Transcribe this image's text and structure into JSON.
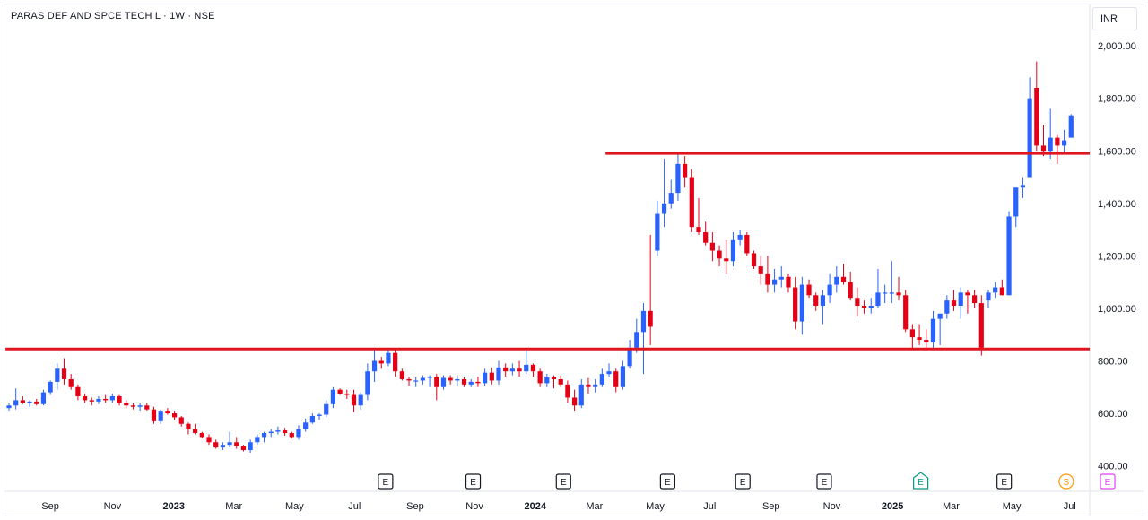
{
  "header": {
    "symbol_title": "PARAS DEF AND SPCE TECH L · 1W · NSE",
    "currency": "INR"
  },
  "colors": {
    "up": "#2962ff",
    "down": "#e60016",
    "level_line": "#e0161e",
    "grid_text": "#131722",
    "earnings": "#131722",
    "earnings_next": "#089981",
    "dividend": "#ff9800",
    "earnings_future": "#e040fb"
  },
  "chart_data": {
    "type": "candlestick",
    "timeframe": "1W",
    "yaxis": {
      "ticks": [
        "400.00",
        "600.00",
        "800.00",
        "1,000.00",
        "1,200.00",
        "1,400.00",
        "1,600.00",
        "1,800.00",
        "2,000.00"
      ],
      "tick_values": [
        400,
        600,
        800,
        1000,
        1200,
        1400,
        1600,
        1800,
        2000
      ],
      "range": [
        303,
        2161
      ]
    },
    "xaxis": {
      "labels": [
        "Sep",
        "Nov",
        "2023",
        "Mar",
        "May",
        "Jul",
        "Sep",
        "Nov",
        "2024",
        "Mar",
        "May",
        "Jul",
        "Sep",
        "Nov",
        "2025",
        "Mar",
        "May",
        "Jul"
      ],
      "bold": [
        "2023",
        "2024",
        "2025"
      ],
      "label_index": [
        6.0,
        15.0,
        23.9,
        32.6,
        41.4,
        50.1,
        58.9,
        67.5,
        76.3,
        84.9,
        93.7,
        101.6,
        110.5,
        119.3,
        128.1,
        136.6,
        145.4,
        153.8
      ]
    },
    "horizontal_levels": [
      {
        "value": 1590,
        "from_index": 86.5
      },
      {
        "value": 845,
        "from_index": -0.5
      }
    ],
    "events": [
      {
        "type": "E",
        "index": 54.6
      },
      {
        "type": "E",
        "index": 67.3
      },
      {
        "type": "E",
        "index": 80.4
      },
      {
        "type": "E",
        "index": 95.5
      },
      {
        "type": "E",
        "index": 106.4
      },
      {
        "type": "E",
        "index": 118.2
      },
      {
        "type": "E-next",
        "index": 132.2
      },
      {
        "type": "E",
        "index": 144.3
      },
      {
        "type": "S",
        "index": 153.3
      },
      {
        "type": "E-future",
        "index": 159.3
      }
    ],
    "candles": [
      [
        620,
        640,
        610,
        630
      ],
      [
        630,
        695,
        615,
        650
      ],
      [
        650,
        665,
        635,
        640
      ],
      [
        640,
        650,
        625,
        645
      ],
      [
        645,
        655,
        630,
        635
      ],
      [
        635,
        690,
        630,
        680
      ],
      [
        680,
        725,
        670,
        720
      ],
      [
        720,
        790,
        690,
        770
      ],
      [
        770,
        810,
        710,
        730
      ],
      [
        730,
        750,
        690,
        700
      ],
      [
        700,
        710,
        650,
        665
      ],
      [
        665,
        675,
        640,
        650
      ],
      [
        650,
        660,
        630,
        645
      ],
      [
        645,
        665,
        635,
        655
      ],
      [
        655,
        670,
        640,
        650
      ],
      [
        650,
        675,
        640,
        665
      ],
      [
        665,
        670,
        630,
        640
      ],
      [
        640,
        650,
        620,
        630
      ],
      [
        630,
        640,
        615,
        625
      ],
      [
        625,
        640,
        610,
        630
      ],
      [
        630,
        640,
        610,
        615
      ],
      [
        615,
        625,
        560,
        570
      ],
      [
        570,
        615,
        560,
        610
      ],
      [
        610,
        620,
        595,
        600
      ],
      [
        600,
        610,
        575,
        585
      ],
      [
        585,
        590,
        550,
        560
      ],
      [
        560,
        565,
        520,
        540
      ],
      [
        540,
        560,
        520,
        525
      ],
      [
        525,
        530,
        505,
        510
      ],
      [
        510,
        520,
        480,
        490
      ],
      [
        490,
        500,
        465,
        470
      ],
      [
        470,
        490,
        460,
        480
      ],
      [
        480,
        530,
        470,
        490
      ],
      [
        490,
        510,
        465,
        475
      ],
      [
        475,
        480,
        455,
        460
      ],
      [
        460,
        500,
        450,
        490
      ],
      [
        490,
        520,
        480,
        510
      ],
      [
        510,
        530,
        490,
        525
      ],
      [
        525,
        540,
        510,
        530
      ],
      [
        530,
        550,
        520,
        535
      ],
      [
        535,
        545,
        515,
        525
      ],
      [
        525,
        530,
        505,
        510
      ],
      [
        510,
        555,
        500,
        540
      ],
      [
        540,
        580,
        530,
        565
      ],
      [
        565,
        600,
        560,
        590
      ],
      [
        590,
        600,
        575,
        595
      ],
      [
        595,
        650,
        585,
        635
      ],
      [
        635,
        700,
        620,
        690
      ],
      [
        690,
        695,
        670,
        675
      ],
      [
        675,
        690,
        655,
        670
      ],
      [
        670,
        690,
        605,
        630
      ],
      [
        630,
        680,
        615,
        670
      ],
      [
        670,
        790,
        650,
        760
      ],
      [
        760,
        850,
        720,
        800
      ],
      [
        800,
        815,
        770,
        790
      ],
      [
        790,
        850,
        780,
        830
      ],
      [
        830,
        845,
        740,
        760
      ],
      [
        760,
        770,
        725,
        730
      ],
      [
        730,
        740,
        705,
        725
      ],
      [
        725,
        740,
        700,
        725
      ],
      [
        725,
        745,
        710,
        735
      ],
      [
        735,
        745,
        700,
        740
      ],
      [
        740,
        750,
        650,
        700
      ],
      [
        700,
        745,
        690,
        735
      ],
      [
        735,
        745,
        710,
        725
      ],
      [
        725,
        745,
        705,
        730
      ],
      [
        730,
        740,
        700,
        710
      ],
      [
        710,
        730,
        700,
        720
      ],
      [
        720,
        740,
        700,
        715
      ],
      [
        715,
        770,
        705,
        755
      ],
      [
        755,
        775,
        710,
        725
      ],
      [
        725,
        800,
        710,
        775
      ],
      [
        775,
        790,
        740,
        760
      ],
      [
        760,
        790,
        745,
        770
      ],
      [
        770,
        800,
        740,
        760
      ],
      [
        760,
        840,
        750,
        785
      ],
      [
        785,
        790,
        740,
        760
      ],
      [
        760,
        770,
        700,
        715
      ],
      [
        715,
        750,
        700,
        740
      ],
      [
        740,
        745,
        695,
        730
      ],
      [
        730,
        745,
        700,
        710
      ],
      [
        710,
        725,
        640,
        660
      ],
      [
        660,
        690,
        610,
        630
      ],
      [
        630,
        730,
        620,
        710
      ],
      [
        710,
        735,
        675,
        700
      ],
      [
        700,
        730,
        680,
        710
      ],
      [
        710,
        770,
        700,
        750
      ],
      [
        750,
        790,
        740,
        760
      ],
      [
        760,
        770,
        680,
        700
      ],
      [
        700,
        800,
        690,
        780
      ],
      [
        780,
        880,
        770,
        850
      ],
      [
        850,
        960,
        830,
        910
      ],
      [
        910,
        1020,
        750,
        990
      ],
      [
        990,
        1280,
        860,
        930
      ],
      [
        1220,
        1410,
        1200,
        1360
      ],
      [
        1360,
        1570,
        1310,
        1400
      ],
      [
        1400,
        1490,
        1380,
        1440
      ],
      [
        1440,
        1590,
        1410,
        1550
      ],
      [
        1550,
        1580,
        1460,
        1500
      ],
      [
        1500,
        1530,
        1290,
        1310
      ],
      [
        1310,
        1420,
        1280,
        1290
      ],
      [
        1290,
        1330,
        1240,
        1250
      ],
      [
        1250,
        1290,
        1180,
        1220
      ],
      [
        1220,
        1240,
        1160,
        1190
      ],
      [
        1190,
        1260,
        1130,
        1180
      ],
      [
        1180,
        1290,
        1160,
        1260
      ],
      [
        1260,
        1300,
        1240,
        1280
      ],
      [
        1280,
        1290,
        1200,
        1210
      ],
      [
        1210,
        1220,
        1150,
        1160
      ],
      [
        1160,
        1200,
        1090,
        1130
      ],
      [
        1130,
        1200,
        1060,
        1090
      ],
      [
        1090,
        1150,
        1060,
        1110
      ],
      [
        1110,
        1160,
        1080,
        1120
      ],
      [
        1120,
        1130,
        1060,
        1080
      ],
      [
        1080,
        1120,
        920,
        950
      ],
      [
        950,
        1120,
        900,
        1090
      ],
      [
        1090,
        1110,
        1040,
        1050
      ],
      [
        1050,
        1060,
        990,
        1010
      ],
      [
        1010,
        1070,
        940,
        1050
      ],
      [
        1050,
        1130,
        1020,
        1090
      ],
      [
        1090,
        1160,
        1060,
        1120
      ],
      [
        1120,
        1170,
        1090,
        1100
      ],
      [
        1100,
        1140,
        1030,
        1040
      ],
      [
        1040,
        1080,
        970,
        1010
      ],
      [
        1010,
        1030,
        980,
        1000
      ],
      [
        1000,
        1040,
        980,
        1010
      ],
      [
        1010,
        1150,
        1000,
        1060
      ],
      [
        1060,
        1090,
        1020,
        1060
      ],
      [
        1060,
        1180,
        1020,
        1060
      ],
      [
        1060,
        1120,
        1030,
        1050
      ],
      [
        1050,
        1070,
        910,
        920
      ],
      [
        920,
        940,
        840,
        890
      ],
      [
        890,
        940,
        860,
        880
      ],
      [
        880,
        920,
        850,
        870
      ],
      [
        870,
        990,
        850,
        960
      ],
      [
        960,
        980,
        860,
        980
      ],
      [
        980,
        1050,
        960,
        1030
      ],
      [
        1030,
        1070,
        990,
        1010
      ],
      [
        1010,
        1080,
        960,
        1060
      ],
      [
        1060,
        1070,
        980,
        1050
      ],
      [
        1050,
        1070,
        1000,
        1020
      ],
      [
        1020,
        1050,
        820,
        850
      ],
      [
        1030,
        1070,
        1000,
        1060
      ],
      [
        1060,
        1100,
        1040,
        1080
      ],
      [
        1080,
        1110,
        1050,
        1050
      ],
      [
        1050,
        1370,
        1050,
        1350
      ],
      [
        1350,
        1460,
        1310,
        1460
      ],
      [
        1460,
        1500,
        1420,
        1470
      ],
      [
        1500,
        1880,
        1500,
        1800
      ],
      [
        1840,
        1940,
        1600,
        1620
      ],
      [
        1620,
        1700,
        1580,
        1600
      ],
      [
        1600,
        1760,
        1570,
        1650
      ],
      [
        1650,
        1660,
        1550,
        1620
      ],
      [
        1620,
        1680,
        1590,
        1640
      ],
      [
        1650,
        1740,
        1650,
        1735
      ]
    ]
  }
}
